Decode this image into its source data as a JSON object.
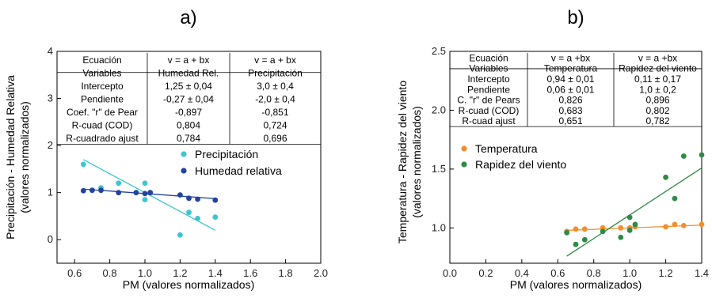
{
  "chart_data": [
    {
      "type": "scatter",
      "panel_label": "a)",
      "xlabel": "PM (valores normalizados)",
      "ylabel_line1": "Precipitación - Humedad Relativa",
      "ylabel_line2": "(valores normalizados)",
      "xlim": [
        0.5,
        2.0
      ],
      "ylim": [
        -0.5,
        4.0
      ],
      "x_ticks": [
        0.6,
        0.8,
        1.0,
        1.2,
        1.4,
        1.6,
        1.8,
        2.0
      ],
      "x_tick_labels": [
        "0.6",
        "0.8",
        "1.0",
        "1.2",
        "1.4",
        "1.6",
        "1.8",
        "2.0"
      ],
      "y_ticks": [
        0,
        1,
        2,
        3,
        4
      ],
      "y_tick_labels": [
        "0",
        "1",
        "2",
        "3",
        "4"
      ],
      "legend_position": "right",
      "series": [
        {
          "name": "Precipitación",
          "color": "#3cc6cf",
          "fit": {
            "a": 3.0,
            "b": -2.0,
            "x_range": [
              0.65,
              1.4
            ]
          },
          "points": [
            [
              0.65,
              1.6
            ],
            [
              0.75,
              1.1
            ],
            [
              0.85,
              1.2
            ],
            [
              1.0,
              1.2
            ],
            [
              1.0,
              0.85
            ],
            [
              1.03,
              1.0
            ],
            [
              1.2,
              0.1
            ],
            [
              1.25,
              0.58
            ],
            [
              1.3,
              0.45
            ],
            [
              1.4,
              0.48
            ]
          ]
        },
        {
          "name": "Humedad relativa",
          "color": "#23439e",
          "fit": {
            "a": 1.25,
            "b": -0.27,
            "x_range": [
              0.65,
              1.4
            ]
          },
          "points": [
            [
              0.65,
              1.04
            ],
            [
              0.7,
              1.05
            ],
            [
              0.75,
              1.05
            ],
            [
              0.85,
              1.0
            ],
            [
              0.95,
              1.0
            ],
            [
              1.0,
              0.98
            ],
            [
              1.03,
              1.0
            ],
            [
              1.2,
              0.95
            ],
            [
              1.25,
              0.88
            ],
            [
              1.3,
              0.86
            ],
            [
              1.4,
              0.84
            ]
          ]
        }
      ],
      "table": {
        "rows": [
          [
            "Ecuación",
            "v = a + bx",
            "v = a + bx"
          ],
          [
            "Variables",
            "Humedad Rel.",
            "Precipitación"
          ],
          [
            "Intercepto",
            "1,25 ± 0,04",
            "3,0 ± 0,4"
          ],
          [
            "Pendiente",
            "-0,27 ± 0,04",
            "-2,0  ± 0,4"
          ],
          [
            "Coef. \"r\" de Pear",
            "-0,897",
            "-0,851"
          ],
          [
            "R-cuad (COD)",
            "0,804",
            "0,724"
          ],
          [
            "R-cuadrado ajust",
            "0,784",
            "0,696"
          ]
        ]
      }
    },
    {
      "type": "scatter",
      "panel_label": "b)",
      "xlabel": "PM (valores normalizados)",
      "ylabel_line1": "Temperatura - Rapidez del viento",
      "ylabel_line2": "(valores normalizados)",
      "xlim": [
        0.0,
        1.4
      ],
      "ylim": [
        0.7,
        2.5
      ],
      "x_ticks": [
        0.0,
        0.2,
        0.4,
        0.6,
        0.8,
        1.0,
        1.2,
        1.4
      ],
      "x_tick_labels": [
        "0.0",
        "0.2",
        "0.4",
        "0.6",
        "0.8",
        "1.0",
        "1.2",
        "1.4"
      ],
      "y_ticks": [
        1.0,
        1.5,
        2.0,
        2.5
      ],
      "y_tick_labels": [
        "1.0",
        "1.5",
        "2.0",
        "2.5"
      ],
      "legend_position": "left",
      "series": [
        {
          "name": "Temperatura",
          "color": "#f28e2b",
          "fit": {
            "a": 0.94,
            "b": 0.06,
            "x_range": [
              0.65,
              1.4
            ]
          },
          "points": [
            [
              0.65,
              0.97
            ],
            [
              0.7,
              0.99
            ],
            [
              0.75,
              0.99
            ],
            [
              0.85,
              1.0
            ],
            [
              0.95,
              1.0
            ],
            [
              1.0,
              1.0
            ],
            [
              1.03,
              1.01
            ],
            [
              1.2,
              1.01
            ],
            [
              1.25,
              1.03
            ],
            [
              1.3,
              1.02
            ],
            [
              1.4,
              1.03
            ]
          ]
        },
        {
          "name": "Rapidez del viento",
          "color": "#2e8b45",
          "fit": {
            "a": 0.11,
            "b": 1.0,
            "x_range": [
              0.65,
              1.4
            ]
          },
          "points": [
            [
              0.65,
              0.96
            ],
            [
              0.7,
              0.86
            ],
            [
              0.75,
              0.9
            ],
            [
              0.85,
              0.97
            ],
            [
              0.95,
              0.92
            ],
            [
              1.0,
              0.98
            ],
            [
              1.0,
              1.09
            ],
            [
              1.03,
              1.03
            ],
            [
              1.2,
              1.43
            ],
            [
              1.25,
              1.25
            ],
            [
              1.3,
              1.61
            ],
            [
              1.4,
              1.62
            ]
          ]
        }
      ],
      "table": {
        "rows": [
          [
            "Ecuación",
            "v = a +bx",
            "v = a +bx"
          ],
          [
            "Variables",
            "Temperatura",
            "Rapidez del viento"
          ],
          [
            "Intercepto",
            "0,94  ± 0,01",
            "0,11  ±  0,17"
          ],
          [
            "Pendiente",
            "0,06 ± 0,01",
            "1,0  ± 0,2"
          ],
          [
            "C. \"r\" de Pears",
            "0,826",
            "0,896"
          ],
          [
            "R-cuad (COD)",
            "0,683",
            "0,802"
          ],
          [
            "R-cuad ajust",
            "0,651",
            "0,782"
          ]
        ]
      }
    }
  ]
}
